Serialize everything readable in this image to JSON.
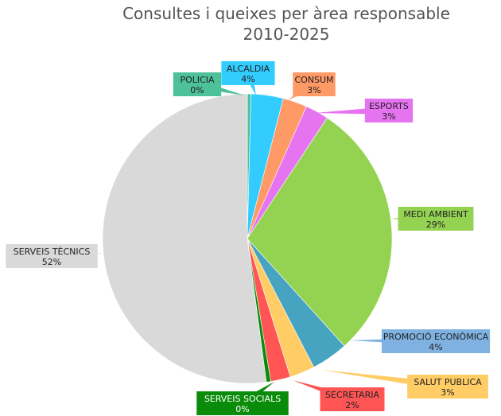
{
  "chart_data": {
    "type": "pie",
    "title_lines": [
      "Consultes i queixes per àrea responsable",
      "2010-2025"
    ],
    "start_angle_deg": -90,
    "slices": [
      {
        "label": "POLICIA",
        "pct_label": "0%",
        "value": 0.4,
        "color": "#4cc19a"
      },
      {
        "label": "ALCALDIA",
        "pct_label": "4%",
        "value": 3.6,
        "color": "#33ccff"
      },
      {
        "label": "CONSUM",
        "pct_label": "3%",
        "value": 2.7,
        "color": "#ff9966"
      },
      {
        "label": "ESPORTS",
        "pct_label": "3%",
        "value": 2.6,
        "color": "#e673f0"
      },
      {
        "label": "MEDI AMBIENT",
        "pct_label": "29%",
        "value": 29.0,
        "color": "#94d352"
      },
      {
        "label": "PROMOCIÓ ECONÒMICA",
        "pct_label": "4%",
        "value": 4.1,
        "color": "#46a4c0"
      },
      {
        "label": "SALUT PUBLICA",
        "pct_label": "3%",
        "value": 2.8,
        "color": "#ffcc66"
      },
      {
        "label": "SECRETARIA",
        "pct_label": "2%",
        "value": 2.2,
        "color": "#ff5555"
      },
      {
        "label": "SERVEIS SOCIALS",
        "pct_label": "0%",
        "value": 0.5,
        "color": "#0a8c0a"
      },
      {
        "label": "SERVEIS TÈCNICS",
        "pct_label": "52%",
        "value": 52.1,
        "color": "#d9d9d9"
      }
    ],
    "callout_colors": {
      "POLICIA": "#4cc19a",
      "ALCALDIA": "#33ccff",
      "CONSUM": "#ff9966",
      "ESPORTS": "#e673f0",
      "MEDI AMBIENT": "#94d352",
      "PROMOCIÓ ECONÒMICA": "#7fb2e0",
      "SALUT PUBLICA": "#ffcc66",
      "SECRETARIA": "#ff5555",
      "SERVEIS SOCIALS": "#0a8c0a",
      "SERVEIS TÈCNICS": "#d9d9d9"
    }
  }
}
